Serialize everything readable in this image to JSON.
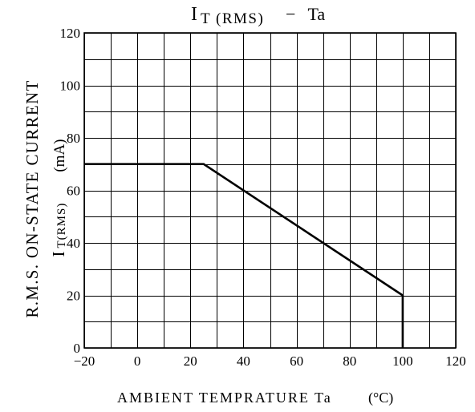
{
  "chart_data": {
    "type": "line",
    "title": {
      "main": "I",
      "subscript": "T (RMS)",
      "suffix": "− Ta"
    },
    "xlabel": {
      "text": "AMBIENT TEMPRATURE Ta",
      "unit": "(°C)"
    },
    "ylabel": {
      "line1": "R.M.S. ON-STATE CURRENT",
      "line2_main": "I",
      "line2_subscript": "T(RMS)",
      "line2_unit": "(mA)"
    },
    "xlim": [
      -20,
      120
    ],
    "ylim": [
      0,
      120
    ],
    "x_ticks": [
      -20,
      0,
      20,
      40,
      60,
      80,
      100,
      120
    ],
    "x_tick_labels": [
      "−20",
      "0",
      "20",
      "40",
      "60",
      "80",
      "100",
      "120"
    ],
    "y_ticks": [
      0,
      20,
      40,
      60,
      80,
      100,
      120
    ],
    "y_tick_labels": [
      "0",
      "20",
      "40",
      "60",
      "80",
      "100",
      "120"
    ],
    "grid": true,
    "grid_step": {
      "x": 10,
      "y": 10
    },
    "series": [
      {
        "x": [
          -20,
          25,
          100,
          100
        ],
        "y": [
          70,
          70,
          20,
          0
        ],
        "color": "#000000"
      }
    ]
  }
}
